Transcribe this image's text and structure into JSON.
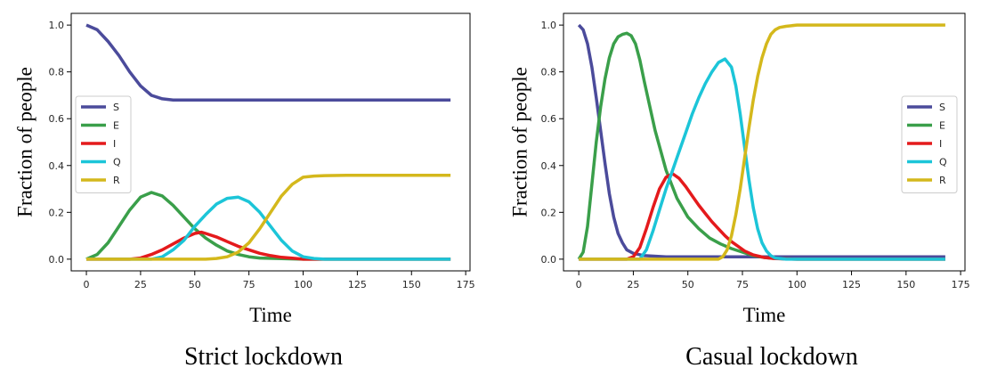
{
  "chart_data": [
    {
      "type": "line",
      "caption": "Strict lockdown",
      "xlabel": "Time",
      "ylabel": "Fraction of people",
      "xlim": [
        -7,
        177
      ],
      "ylim": [
        -0.05,
        1.05
      ],
      "xticks": [
        0,
        25,
        50,
        75,
        100,
        125,
        150,
        175
      ],
      "yticks": [
        0.0,
        0.2,
        0.4,
        0.6,
        0.8,
        1.0
      ],
      "legend": "center-left",
      "grid": false,
      "series": [
        {
          "name": "S",
          "color": "#4b4b9b",
          "x": [
            0,
            5,
            10,
            15,
            20,
            25,
            30,
            35,
            40,
            50,
            60,
            80,
            100,
            130,
            168
          ],
          "y": [
            1.0,
            0.98,
            0.93,
            0.87,
            0.8,
            0.74,
            0.7,
            0.685,
            0.68,
            0.68,
            0.68,
            0.68,
            0.68,
            0.68,
            0.68
          ]
        },
        {
          "name": "E",
          "color": "#3a9f4a",
          "x": [
            0,
            5,
            10,
            15,
            20,
            25,
            30,
            35,
            40,
            45,
            50,
            55,
            60,
            65,
            70,
            75,
            80,
            90,
            100,
            168
          ],
          "y": [
            0.0,
            0.02,
            0.07,
            0.14,
            0.21,
            0.265,
            0.285,
            0.27,
            0.23,
            0.18,
            0.13,
            0.09,
            0.06,
            0.035,
            0.02,
            0.01,
            0.005,
            0.002,
            0.0,
            0.0
          ]
        },
        {
          "name": "I",
          "color": "#e41a1c",
          "x": [
            0,
            20,
            25,
            30,
            35,
            40,
            45,
            50,
            53,
            55,
            60,
            65,
            70,
            75,
            80,
            85,
            90,
            95,
            100,
            110,
            168
          ],
          "y": [
            0.0,
            0.0,
            0.005,
            0.02,
            0.04,
            0.065,
            0.09,
            0.11,
            0.115,
            0.11,
            0.095,
            0.075,
            0.055,
            0.04,
            0.025,
            0.015,
            0.008,
            0.004,
            0.0,
            0.0,
            0.0
          ]
        },
        {
          "name": "Q",
          "color": "#1cc5d8",
          "x": [
            0,
            30,
            35,
            40,
            45,
            50,
            55,
            60,
            65,
            70,
            75,
            80,
            85,
            90,
            95,
            100,
            105,
            110,
            168
          ],
          "y": [
            0.0,
            0.0,
            0.01,
            0.04,
            0.08,
            0.14,
            0.19,
            0.235,
            0.26,
            0.265,
            0.245,
            0.2,
            0.14,
            0.08,
            0.035,
            0.01,
            0.003,
            0.0,
            0.0
          ]
        },
        {
          "name": "R",
          "color": "#d4b81c",
          "x": [
            0,
            55,
            60,
            65,
            70,
            75,
            80,
            85,
            90,
            95,
            100,
            105,
            110,
            120,
            168
          ],
          "y": [
            0.0,
            0.0,
            0.003,
            0.01,
            0.03,
            0.07,
            0.13,
            0.2,
            0.27,
            0.32,
            0.35,
            0.355,
            0.357,
            0.358,
            0.358
          ]
        }
      ]
    },
    {
      "type": "line",
      "caption": "Casual  lockdown",
      "xlabel": "Time",
      "ylabel": "Fraction of people",
      "xlim": [
        -7,
        177
      ],
      "ylim": [
        -0.05,
        1.05
      ],
      "xticks": [
        0,
        25,
        50,
        75,
        100,
        125,
        150,
        175
      ],
      "yticks": [
        0.0,
        0.2,
        0.4,
        0.6,
        0.8,
        1.0
      ],
      "legend": "center-right",
      "grid": false,
      "series": [
        {
          "name": "S",
          "color": "#4b4b9b",
          "x": [
            0,
            2,
            4,
            6,
            8,
            10,
            12,
            14,
            16,
            18,
            20,
            22,
            25,
            30,
            40,
            60,
            100,
            168
          ],
          "y": [
            1.0,
            0.98,
            0.92,
            0.82,
            0.69,
            0.55,
            0.41,
            0.28,
            0.18,
            0.11,
            0.07,
            0.04,
            0.025,
            0.015,
            0.01,
            0.01,
            0.01,
            0.01
          ]
        },
        {
          "name": "E",
          "color": "#3a9f4a",
          "x": [
            0,
            2,
            4,
            6,
            8,
            10,
            12,
            14,
            16,
            18,
            20,
            22,
            24,
            26,
            28,
            30,
            35,
            40,
            45,
            50,
            55,
            60,
            65,
            70,
            75,
            80,
            85,
            90,
            100,
            168
          ],
          "y": [
            0.0,
            0.03,
            0.14,
            0.32,
            0.5,
            0.65,
            0.77,
            0.86,
            0.92,
            0.95,
            0.96,
            0.965,
            0.955,
            0.92,
            0.85,
            0.76,
            0.55,
            0.38,
            0.26,
            0.18,
            0.13,
            0.09,
            0.065,
            0.045,
            0.03,
            0.015,
            0.007,
            0.003,
            0.0,
            0.0
          ]
        },
        {
          "name": "I",
          "color": "#e41a1c",
          "x": [
            0,
            22,
            25,
            28,
            31,
            34,
            37,
            40,
            43,
            46,
            49,
            52,
            55,
            58,
            61,
            64,
            67,
            70,
            73,
            76,
            80,
            85,
            90,
            100,
            168
          ],
          "y": [
            0.0,
            0.0,
            0.01,
            0.05,
            0.13,
            0.22,
            0.3,
            0.35,
            0.365,
            0.345,
            0.31,
            0.27,
            0.23,
            0.195,
            0.16,
            0.13,
            0.1,
            0.075,
            0.055,
            0.035,
            0.018,
            0.007,
            0.002,
            0.0,
            0.0
          ]
        },
        {
          "name": "Q",
          "color": "#1cc5d8",
          "x": [
            0,
            28,
            31,
            34,
            37,
            40,
            43,
            46,
            49,
            52,
            55,
            58,
            61,
            64,
            67,
            70,
            72,
            74,
            76,
            78,
            80,
            82,
            84,
            86,
            88,
            90,
            95,
            100,
            168
          ],
          "y": [
            0.0,
            0.0,
            0.04,
            0.12,
            0.21,
            0.3,
            0.38,
            0.46,
            0.54,
            0.62,
            0.69,
            0.75,
            0.8,
            0.84,
            0.855,
            0.82,
            0.74,
            0.62,
            0.48,
            0.34,
            0.22,
            0.13,
            0.07,
            0.035,
            0.015,
            0.005,
            0.0,
            0.0,
            0.0
          ]
        },
        {
          "name": "R",
          "color": "#d4b81c",
          "x": [
            0,
            64,
            66,
            68,
            70,
            72,
            74,
            76,
            78,
            80,
            82,
            84,
            86,
            88,
            90,
            92,
            95,
            100,
            110,
            168
          ],
          "y": [
            0.0,
            0.0,
            0.01,
            0.04,
            0.1,
            0.19,
            0.3,
            0.43,
            0.56,
            0.68,
            0.78,
            0.86,
            0.92,
            0.96,
            0.98,
            0.99,
            0.995,
            1.0,
            1.0,
            1.0
          ]
        }
      ]
    }
  ]
}
